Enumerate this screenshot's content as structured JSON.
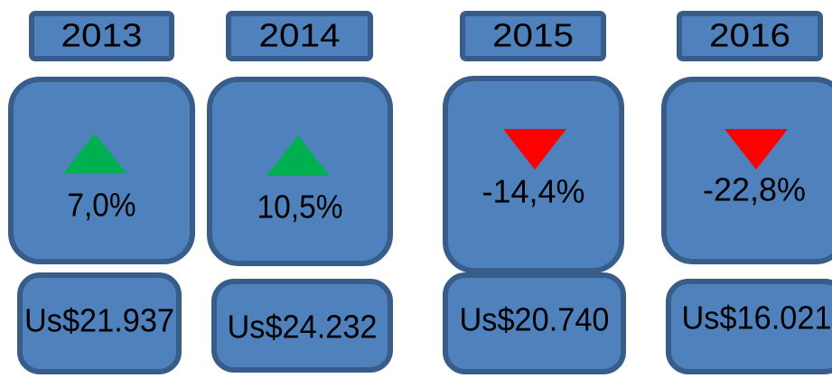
{
  "cards": [
    {
      "year": "2013",
      "change": "7,0%",
      "trend": "up",
      "amount": "Us$21.937"
    },
    {
      "year": "2014",
      "change": "10,5%",
      "trend": "up",
      "amount": "Us$24.232"
    },
    {
      "year": "2015",
      "change": "-14,4%",
      "trend": "down",
      "amount": "Us$20.740"
    },
    {
      "year": "2016",
      "change": "-22,8%",
      "trend": "down",
      "amount": "Us$16.021"
    }
  ],
  "colors": {
    "up": "#00b050",
    "down": "#ff0000",
    "box": "#4f81bd",
    "border": "#385d8a"
  }
}
